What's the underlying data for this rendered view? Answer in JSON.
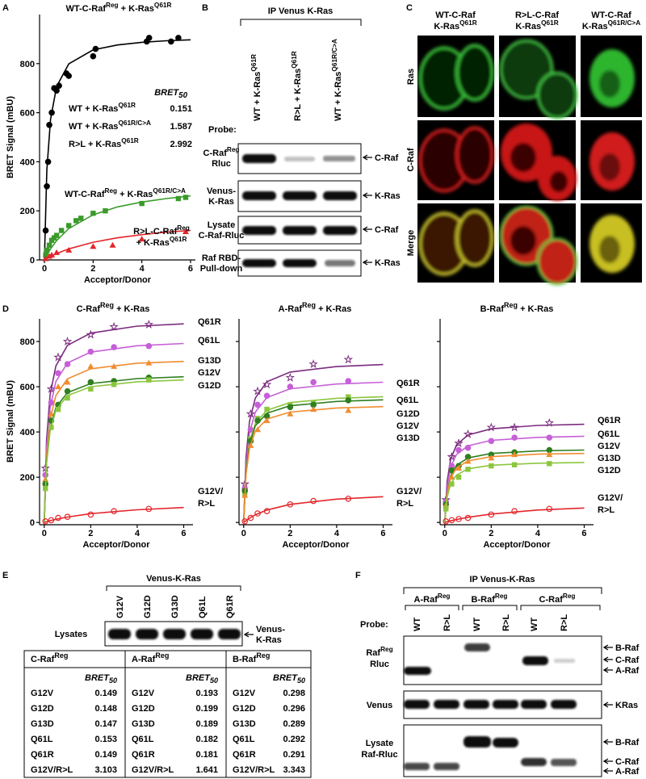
{
  "panel_labels": [
    "A",
    "B",
    "C",
    "D",
    "E",
    "F"
  ],
  "chart_data": [
    {
      "type": "scatter",
      "xlabel": "Acceptor/Donor",
      "ylabel": "BRET Signal (mBU)",
      "xlim": [
        -0.2,
        6.2
      ],
      "ylim": [
        0,
        1000
      ],
      "xticks": [
        0,
        2,
        4,
        6
      ],
      "yticks": [
        0,
        200,
        400,
        600,
        800
      ],
      "show_ytick_labels": true,
      "curve_x": [
        0,
        0.1,
        0.25,
        0.5,
        1,
        2,
        3,
        4,
        5,
        6
      ],
      "series": [
        {
          "name": [
            [
              "WT-C-Raf",
              "Reg",
              " + K-Ras",
              "Q61R"
            ]
          ],
          "color": "#000000",
          "marker": "circle",
          "x": [
            0.05,
            0.1,
            0.15,
            0.2,
            0.3,
            0.4,
            0.5,
            0.6,
            0.9,
            1.0,
            2.0,
            2.1,
            4.2,
            4.3,
            5.2,
            5.5
          ],
          "values": [
            120,
            300,
            400,
            550,
            600,
            700,
            690,
            710,
            760,
            750,
            830,
            860,
            890,
            905,
            890,
            905
          ],
          "curve": [
            0,
            366,
            573,
            707,
            799,
            856,
            876,
            887,
            893,
            897
          ]
        },
        {
          "name": [
            [
              "WT-C-Raf",
              "Reg",
              " + K-Ras",
              "Q61R/C>A"
            ]
          ],
          "color": "#3a9a2a",
          "marker": "square",
          "x": [
            0.05,
            0.1,
            0.2,
            0.3,
            0.4,
            0.5,
            0.7,
            1.0,
            1.3,
            1.5,
            2.0,
            2.5,
            4.0,
            5.5,
            5.8
          ],
          "values": [
            20,
            40,
            60,
            80,
            90,
            100,
            120,
            140,
            160,
            170,
            190,
            200,
            230,
            250,
            255
          ],
          "curve": [
            0,
            19,
            45,
            79,
            128,
            184,
            216,
            236,
            250,
            261
          ]
        },
        {
          "name": [
            [
              "R>L-C-Raf",
              "Reg"
            ],
            [
              "+ K-Ras",
              "Q61R"
            ]
          ],
          "color": "#e3262b",
          "marker": "triangle",
          "x": [
            0.05,
            0.2,
            0.3,
            0.5,
            1.0,
            2.0,
            2.8,
            4.0,
            5.8
          ],
          "values": [
            5,
            15,
            20,
            30,
            40,
            55,
            60,
            85,
            115
          ],
          "curve": [
            0,
            6,
            14,
            26,
            45,
            72,
            90,
            103,
            113,
            120
          ]
        }
      ],
      "bret50": {
        "title": [
          "BRET",
          "50"
        ],
        "rows": [
          {
            "label": [
              "WT + K-Ras",
              "Q61R"
            ],
            "value": 0.151
          },
          {
            "label": [
              "WT + K-Ras",
              "Q61R/C>A"
            ],
            "value": 1.587
          },
          {
            "label": [
              "R>L + K-Ras",
              "Q61R"
            ],
            "value": 2.992
          }
        ]
      }
    },
    {
      "type": "scatter",
      "title": [
        "C-Raf",
        "Reg",
        " + K-Ras"
      ],
      "xlabel": "Acceptor/Donor",
      "ylabel": "BRET Signal (mBU)",
      "xlim": [
        -0.2,
        6.4
      ],
      "ylim": [
        -10,
        900
      ],
      "xticks": [
        0,
        2,
        4,
        6
      ],
      "yticks": [
        0,
        200,
        400,
        600,
        800
      ],
      "show_ytick_labels": true,
      "x": [
        0.05,
        0.3,
        0.6,
        1.0,
        2.0,
        3.0,
        4.5
      ],
      "curve_x": [
        0,
        0.1,
        0.25,
        0.5,
        1,
        2,
        4,
        6
      ],
      "series": [
        {
          "name": "Q61R",
          "color": "#7b2a7f",
          "marker": "star",
          "values": [
            240,
            590,
            730,
            800,
            830,
            865,
            875
          ],
          "curve": [
            0,
            360,
            563,
            692,
            783,
            837,
            868,
            878
          ]
        },
        {
          "name": "Q61L",
          "color": "#c75fd8",
          "marker": "circle",
          "values": [
            210,
            530,
            660,
            700,
            755,
            775,
            780
          ],
          "curve": [
            0,
            324,
            506,
            623,
            705,
            753,
            781,
            791
          ]
        },
        {
          "name": "G13D",
          "color": "#f08c30",
          "marker": "triangle",
          "values": [
            190,
            480,
            600,
            620,
            690,
            690,
            705
          ],
          "curve": [
            0,
            292,
            456,
            561,
            635,
            679,
            704,
            712
          ]
        },
        {
          "name": "G12V",
          "color": "#2f7f20",
          "marker": "circle",
          "values": [
            170,
            450,
            520,
            580,
            620,
            625,
            640
          ],
          "curve": [
            0,
            264,
            413,
            508,
            574,
            614,
            636,
            644
          ]
        },
        {
          "name": "G12D",
          "color": "#8cc63f",
          "marker": "square",
          "values": [
            150,
            420,
            500,
            550,
            590,
            610,
            630
          ],
          "curve": [
            0,
            258,
            403,
            496,
            561,
            600,
            622,
            630
          ]
        },
        {
          "name": [
            [
              "G12V/"
            ],
            [
              "R>L"
            ]
          ],
          "color": "#e3262b",
          "marker": "open-circle",
          "values": [
            5,
            10,
            20,
            25,
            35,
            50,
            60
          ],
          "curve": [
            0,
            3,
            8,
            14,
            24,
            39,
            56,
            66
          ]
        }
      ]
    },
    {
      "type": "scatter",
      "title": [
        "A-Raf",
        "Reg",
        " + K-Ras"
      ],
      "xlabel": "Acceptor/Donor",
      "xlim": [
        -0.2,
        6.4
      ],
      "ylim": [
        -10,
        900
      ],
      "xticks": [
        0,
        2,
        4,
        6
      ],
      "yticks": [
        0,
        200,
        400,
        600,
        800
      ],
      "show_ytick_labels": false,
      "x": [
        0.05,
        0.3,
        0.6,
        1.0,
        2.0,
        3.0,
        4.5
      ],
      "curve_x": [
        0,
        0.1,
        0.25,
        0.5,
        1,
        2,
        4,
        6
      ],
      "series": [
        {
          "name": "Q61R",
          "color": "#7b2a7f",
          "marker": "star",
          "values": [
            170,
            480,
            580,
            610,
            640,
            700,
            720
          ],
          "curve": [
            0,
            286,
            447,
            550,
            622,
            665,
            689,
            698
          ]
        },
        {
          "name": "Q61L",
          "color": "#c75fd8",
          "marker": "circle",
          "values": [
            150,
            410,
            520,
            560,
            600,
            620,
            625
          ],
          "curve": [
            0,
            254,
            397,
            488,
            552,
            591,
            612,
            620
          ]
        },
        {
          "name": "G12D",
          "color": "#8cc63f",
          "marker": "square",
          "values": [
            130,
            370,
            460,
            500,
            520,
            530,
            555
          ],
          "curve": [
            0,
            228,
            356,
            438,
            496,
            530,
            549,
            556
          ]
        },
        {
          "name": "G12V",
          "color": "#2f7f20",
          "marker": "circle",
          "values": [
            140,
            360,
            450,
            470,
            510,
            520,
            540
          ],
          "curve": [
            0,
            222,
            347,
            427,
            483,
            516,
            535,
            542
          ]
        },
        {
          "name": "G13D",
          "color": "#f08c30",
          "marker": "triangle",
          "values": [
            120,
            340,
            410,
            450,
            480,
            500,
            495
          ],
          "curve": [
            0,
            210,
            328,
            404,
            457,
            488,
            506,
            512
          ]
        },
        {
          "name": [
            [
              "G12V/"
            ],
            [
              "R>L"
            ]
          ],
          "color": "#e3262b",
          "marker": "open-circle",
          "values": [
            5,
            20,
            40,
            50,
            80,
            95,
            105
          ],
          "curve": [
            0,
            8,
            19,
            34,
            55,
            80,
            103,
            114
          ]
        }
      ]
    },
    {
      "type": "scatter",
      "title": [
        "B-Raf",
        "Reg",
        " + K-Ras"
      ],
      "xlabel": "Acceptor/Donor",
      "xlim": [
        -0.2,
        6.4
      ],
      "ylim": [
        -10,
        900
      ],
      "xticks": [
        0,
        2,
        4,
        6
      ],
      "yticks": [
        0,
        200,
        400,
        600,
        800
      ],
      "show_ytick_labels": false,
      "x": [
        0.05,
        0.3,
        0.6,
        1.0,
        2.0,
        3.0,
        4.5
      ],
      "curve_x": [
        0,
        0.1,
        0.25,
        0.5,
        1,
        2,
        4,
        6
      ],
      "series": [
        {
          "name": "Q61R",
          "color": "#7b2a7f",
          "marker": "star",
          "values": [
            100,
            290,
            350,
            390,
            420,
            420,
            440
          ],
          "curve": [
            0,
            178,
            278,
            342,
            387,
            414,
            429,
            434
          ]
        },
        {
          "name": "Q61L",
          "color": "#c75fd8",
          "marker": "circle",
          "values": [
            90,
            250,
            320,
            330,
            360,
            375,
            375
          ],
          "curve": [
            0,
            156,
            244,
            300,
            339,
            363,
            376,
            381
          ]
        },
        {
          "name": "G12V",
          "color": "#2f7f20",
          "marker": "circle",
          "values": [
            80,
            230,
            250,
            290,
            300,
            310,
            320
          ],
          "curve": [
            0,
            131,
            205,
            252,
            285,
            305,
            316,
            320
          ]
        },
        {
          "name": "G13D",
          "color": "#f08c30",
          "marker": "triangle",
          "values": [
            75,
            200,
            240,
            270,
            285,
            300,
            300
          ],
          "curve": [
            0,
            125,
            196,
            241,
            272,
            291,
            302,
            305
          ]
        },
        {
          "name": "G12D",
          "color": "#8cc63f",
          "marker": "square",
          "values": [
            60,
            170,
            200,
            235,
            250,
            255,
            260
          ],
          "curve": [
            0,
            109,
            170,
            209,
            237,
            253,
            262,
            265
          ]
        },
        {
          "name": [
            [
              "G12V/"
            ],
            [
              "R>L"
            ]
          ],
          "color": "#e3262b",
          "marker": "open-circle",
          "values": [
            5,
            10,
            15,
            20,
            35,
            50,
            60
          ],
          "curve": [
            0,
            3,
            7,
            13,
            23,
            37,
            55,
            64
          ]
        }
      ]
    }
  ],
  "panel_b": {
    "header": "IP Venus K-Ras",
    "lanes": [
      [
        "WT + K-Ras",
        "Q61R"
      ],
      [
        "R>L + K-Ras",
        "Q61R"
      ],
      [
        "WT + K-Ras",
        "Q61R/C>A"
      ]
    ],
    "probe_label": "Probe:",
    "rows": [
      {
        "label": [
          [
            "C-Raf",
            "Reg"
          ],
          [
            "Rluc"
          ]
        ],
        "band": "C-Raf"
      },
      {
        "label": [
          [
            "Venus-"
          ],
          [
            "K-Ras"
          ]
        ],
        "band": "K-Ras"
      },
      {
        "label": [
          [
            "Lysate"
          ],
          [
            "C-Raf-Rluc"
          ]
        ],
        "band": "C-Raf"
      },
      {
        "label": [
          [
            "Raf RBD-"
          ],
          [
            "Pull-down"
          ]
        ],
        "band": "K-Ras"
      }
    ]
  },
  "panel_c": {
    "columns": [
      [
        [
          "WT-C-Raf"
        ],
        [
          "K-Ras",
          "Q61R"
        ]
      ],
      [
        [
          "R>L-C-Raf"
        ],
        [
          "K-Ras",
          "Q61R"
        ]
      ],
      [
        [
          "WT-C-Raf"
        ],
        [
          "K-Ras",
          "Q61R/C>A"
        ]
      ]
    ],
    "rows": [
      "Ras",
      "C-Raf",
      "Merge"
    ]
  },
  "panel_e": {
    "header": "Venus-K-Ras",
    "lanes": [
      "G12V",
      "G12D",
      "G13D",
      "Q61L",
      "Q61R"
    ],
    "row_label": "Lysates",
    "band": [
      [
        "Venus-"
      ],
      [
        "K-Ras"
      ]
    ],
    "table": [
      {
        "header": [
          "C-Raf",
          "Reg"
        ],
        "value_header": [
          "BRET",
          "50"
        ],
        "rows": [
          [
            "G12V",
            0.149
          ],
          [
            "G12D",
            0.148
          ],
          [
            "G13D",
            0.147
          ],
          [
            "Q61L",
            0.153
          ],
          [
            "Q61R",
            0.149
          ],
          [
            "G12V/R>L",
            3.103
          ]
        ]
      },
      {
        "header": [
          "A-Raf",
          "Reg"
        ],
        "value_header": [
          "BRET",
          "50"
        ],
        "rows": [
          [
            "G12V",
            0.193
          ],
          [
            "G12D",
            0.199
          ],
          [
            "G13D",
            0.189
          ],
          [
            "Q61L",
            0.182
          ],
          [
            "Q61R",
            0.181
          ],
          [
            "G12V/R>L",
            1.641
          ]
        ]
      },
      {
        "header": [
          "B-Raf",
          "Reg"
        ],
        "value_header": [
          "BRET",
          "50"
        ],
        "rows": [
          [
            "G12V",
            0.298
          ],
          [
            "G12D",
            0.296
          ],
          [
            "G13D",
            0.289
          ],
          [
            "Q61L",
            0.292
          ],
          [
            "Q61R",
            0.291
          ],
          [
            "G12V/R>L",
            3.343
          ]
        ]
      }
    ]
  },
  "panel_f": {
    "header": "IP Venus-K-Ras",
    "groups": [
      {
        "label": [
          "A-Raf",
          "Reg"
        ],
        "lanes": [
          "WT",
          "R>L"
        ]
      },
      {
        "label": [
          "B-Raf",
          "Reg"
        ],
        "lanes": [
          "WT",
          "R>L"
        ]
      },
      {
        "label": [
          "C-Raf",
          "Reg"
        ],
        "lanes": [
          "WT",
          "R>L"
        ]
      }
    ],
    "probe_label": "Probe:",
    "rows": [
      {
        "label": [
          [
            "Raf",
            "Reg"
          ],
          [
            "Rluc"
          ]
        ],
        "bands": [
          "B-Raf",
          "C-Raf",
          "A-Raf"
        ]
      },
      {
        "label": "Venus",
        "bands": [
          "KRas"
        ]
      },
      {
        "label": [
          [
            "Lysate"
          ],
          [
            "Raf-Rluc"
          ]
        ],
        "bands": [
          "B-Raf",
          "C-Raf",
          "A-Raf"
        ]
      }
    ]
  }
}
